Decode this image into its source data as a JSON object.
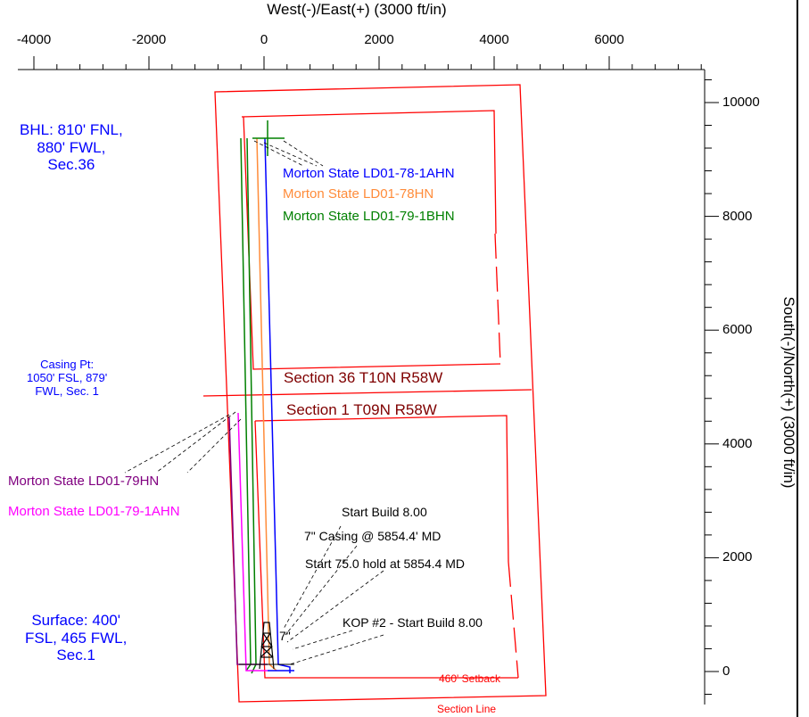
{
  "colors": {
    "section": "#ff0000",
    "section_label": "#7f0000",
    "blue": "#0000ff",
    "orange": "#ff8c3a",
    "green": "#008000",
    "purple": "#800080",
    "magenta": "#ff00ff",
    "black": "#000000"
  },
  "axes": {
    "x_title": "West(-)/East(+) (3000 ft/in)",
    "y_title": "South(-)/North(+) (3000 ft/in)",
    "x_ticks": [
      "-4000",
      "-2000",
      "0",
      "2000",
      "4000",
      "6000"
    ],
    "y_ticks": [
      "10000",
      "8000",
      "6000",
      "4000",
      "2000",
      "0"
    ]
  },
  "annotations": {
    "bhl": [
      "BHL: 810' FNL,",
      "880' FWL,",
      "Sec.36"
    ],
    "casing_pt": [
      "Casing Pt:",
      "1050' FSL, 879'",
      "FWL, Sec. 1"
    ],
    "surface": [
      "Surface: 400'",
      "FSL, 465 FWL,",
      "Sec.1"
    ],
    "section36": "Section 36 T10N R58W",
    "section1": "Section 1 T09N R58W",
    "setback": "460' Setback",
    "section_line": "Section Line",
    "start_build": "Start Build 8.00",
    "casing_md": "7\" Casing @ 5854.4' MD",
    "start_hold": "Start 75.0 hold at 5854.4 MD",
    "kop2": "KOP #2 - Start Build 8.00"
  },
  "wells": [
    {
      "name": "Morton State LD01-78-1AHN",
      "color": "#0000ff"
    },
    {
      "name": "Morton State LD01-78HN",
      "color": "#ff8c3a"
    },
    {
      "name": "Morton State LD01-79-1BHN",
      "color": "#008000"
    },
    {
      "name": "Morton State LD01-79HN",
      "color": "#800080"
    },
    {
      "name": "Morton State LD01-79-1AHN",
      "color": "#ff00ff"
    }
  ]
}
